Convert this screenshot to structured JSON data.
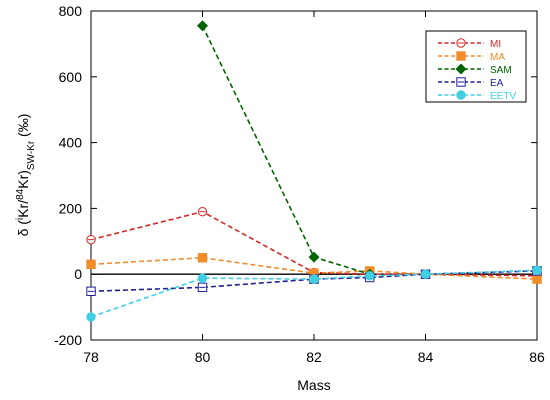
{
  "chart_data": {
    "type": "line",
    "title": "",
    "xlabel": "Mass",
    "ylabel": {
      "prefix": "δ (",
      "sup_i": "i",
      "kr1": "Kr/",
      "sup_84": "84",
      "kr2": "Kr)",
      "sub": "SW-Kr",
      "unit": " (‰)"
    },
    "xlim": [
      78,
      86
    ],
    "ylim": [
      -200,
      800
    ],
    "x_ticks": [
      78,
      80,
      82,
      84,
      86
    ],
    "y_ticks": [
      -200,
      0,
      200,
      400,
      600,
      800
    ],
    "zero_line": true,
    "legend_position": "top-right",
    "series": [
      {
        "name": "MI",
        "color": "#d62728",
        "marker": "circle-open",
        "points": [
          [
            78,
            105
          ],
          [
            80,
            190
          ],
          [
            82,
            5
          ],
          [
            83,
            0
          ],
          [
            84,
            0
          ],
          [
            86,
            -5
          ]
        ]
      },
      {
        "name": "MA",
        "color": "#f28c28",
        "marker": "square-filled",
        "points": [
          [
            78,
            30
          ],
          [
            80,
            50
          ],
          [
            82,
            3
          ],
          [
            83,
            10
          ],
          [
            84,
            0
          ],
          [
            86,
            -15
          ]
        ]
      },
      {
        "name": "SAM",
        "color": "#006400",
        "marker": "diamond-filled",
        "points": [
          [
            80,
            755
          ],
          [
            82,
            52
          ],
          [
            83,
            0
          ]
        ]
      },
      {
        "name": "EA",
        "color": "#1f1f9c",
        "marker": "square-open",
        "points": [
          [
            78,
            -52
          ],
          [
            80,
            -40
          ],
          [
            82,
            -15
          ],
          [
            83,
            -10
          ],
          [
            84,
            0
          ],
          [
            86,
            10
          ]
        ]
      },
      {
        "name": "EETV",
        "color": "#40cfe0",
        "marker": "circle-filled",
        "points": [
          [
            78,
            -130
          ],
          [
            80,
            -12
          ],
          [
            82,
            -15
          ],
          [
            83,
            -5
          ],
          [
            84,
            0
          ],
          [
            86,
            12
          ]
        ]
      }
    ]
  }
}
